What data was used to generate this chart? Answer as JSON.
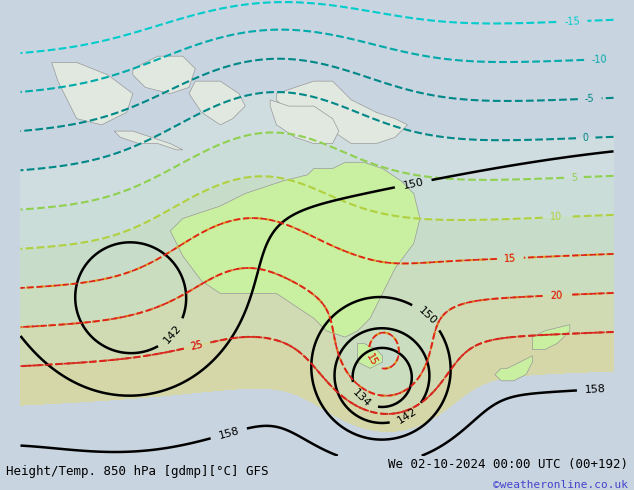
{
  "title_left": "Height/Temp. 850 hPa [gdmp][°C] GFS",
  "title_right": "We 02-10-2024 00:00 UTC (00+192)",
  "credit": "©weatheronline.co.uk",
  "background_color": "#c8d4e0",
  "land_color": "#e8e8e8",
  "australia_color": "#c8f0a0",
  "figsize": [
    6.34,
    4.9
  ],
  "dpi": 100,
  "bottom_bar_color": "#dce8f4",
  "title_fontsize": 9,
  "credit_fontsize": 8,
  "credit_color": "#4444cc"
}
